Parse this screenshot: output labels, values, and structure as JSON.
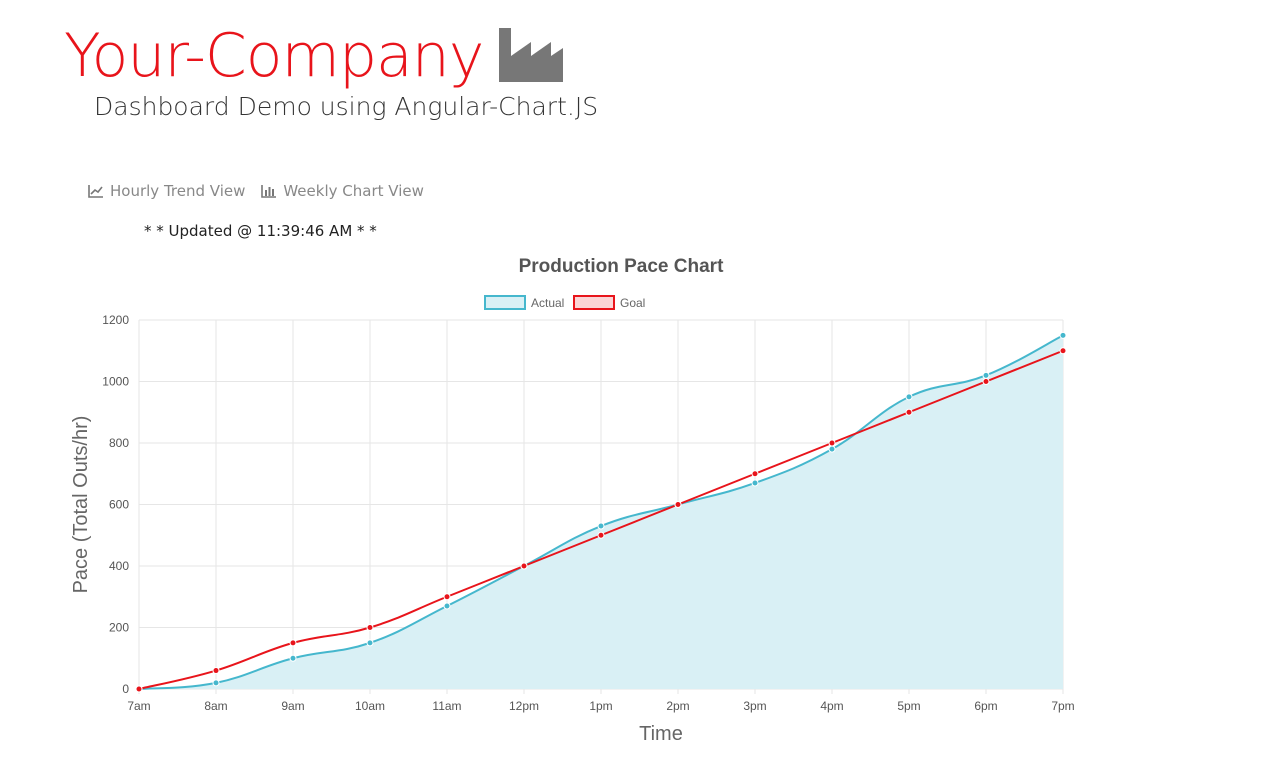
{
  "header": {
    "brand": "Your-Company",
    "subtitle": "Dashboard Demo using Angular-Chart.JS",
    "factory_icon": "factory-icon"
  },
  "tabs": [
    {
      "label": "Hourly Trend View",
      "icon": "line-chart-icon"
    },
    {
      "label": "Weekly Chart View",
      "icon": "bar-chart-icon"
    }
  ],
  "status": {
    "updated": "* * Updated @ 11:39:46 AM * *"
  },
  "colors": {
    "brand": "#e8141b",
    "actual": "#45b7cd",
    "actual_fill": "#d9f0f5",
    "goal": "#e8141b"
  },
  "chart_data": {
    "type": "line",
    "title": "Production Pace Chart",
    "xlabel": "Time",
    "ylabel": "Pace (Total Outs/hr)",
    "categories": [
      "7am",
      "8am",
      "9am",
      "10am",
      "11am",
      "12pm",
      "1pm",
      "2pm",
      "3pm",
      "4pm",
      "5pm",
      "6pm",
      "7pm"
    ],
    "yticks": [
      0,
      200,
      400,
      600,
      800,
      1000,
      1200
    ],
    "ylim": [
      0,
      1200
    ],
    "grid": true,
    "legend": "top",
    "series": [
      {
        "name": "Actual",
        "values": [
          0,
          20,
          100,
          150,
          270,
          400,
          530,
          600,
          670,
          780,
          950,
          1020,
          1150
        ],
        "fill": true
      },
      {
        "name": "Goal",
        "values": [
          0,
          60,
          150,
          200,
          300,
          400,
          500,
          600,
          700,
          800,
          900,
          1000,
          1100
        ],
        "fill": false
      }
    ]
  }
}
